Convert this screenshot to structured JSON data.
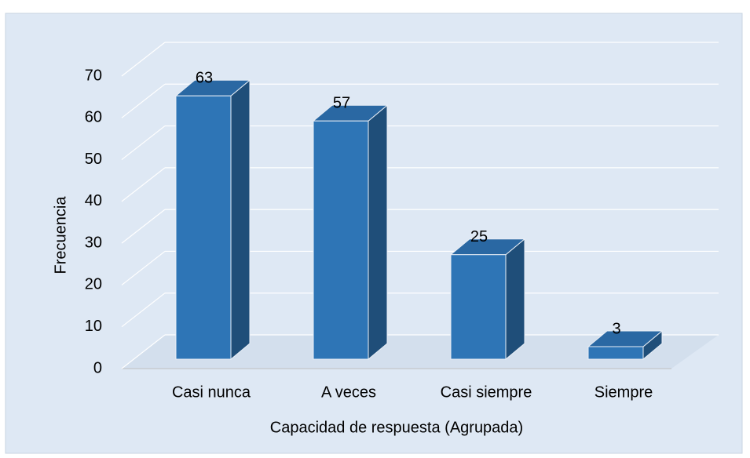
{
  "chart_data": {
    "type": "bar3d",
    "xlabel": "Capacidad de respuesta (Agrupada)",
    "ylabel": "Frecuencia",
    "categories": [
      "Casi nunca",
      "A veces",
      "Casi siempre",
      "Siempre"
    ],
    "values": [
      63,
      57,
      25,
      3
    ],
    "color": "#2e75b6",
    "ylim": [
      0,
      70
    ],
    "yticks": [
      0,
      10,
      20,
      30,
      40,
      50,
      60,
      70
    ],
    "grid": true
  }
}
